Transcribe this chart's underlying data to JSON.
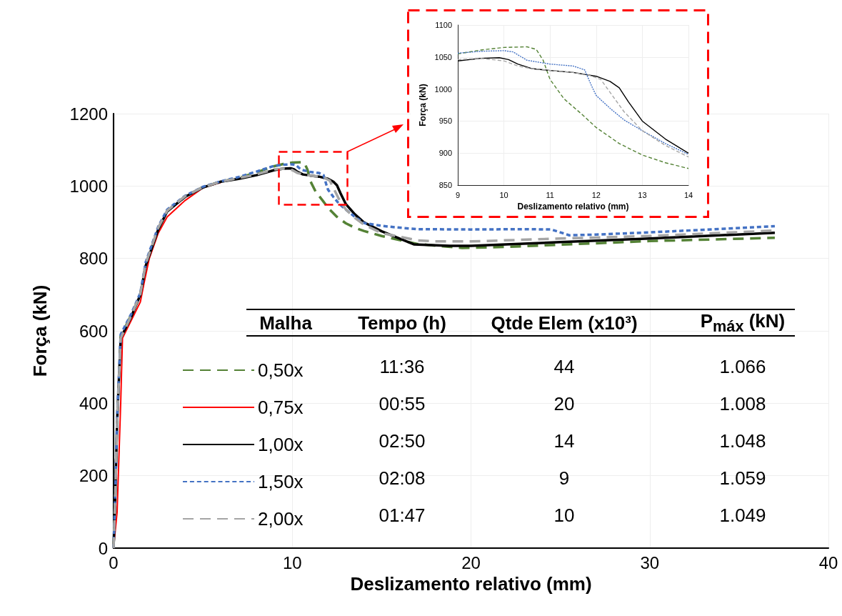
{
  "chart_data": [
    {
      "type": "line",
      "xlabel": "Deslizamento relativo (mm)",
      "ylabel": "Força (kN)",
      "xlim": [
        0,
        40
      ],
      "xticks": [
        0,
        10,
        20,
        30,
        40
      ],
      "ylim": [
        0,
        1200
      ],
      "yticks": [
        0,
        200,
        400,
        600,
        800,
        1000,
        1200
      ],
      "grid": true,
      "legend": "bottom left",
      "marker": "none",
      "annotations": [
        "Malha",
        "Tempo (h)",
        "Qtde Elem (x10³)",
        "P$_{máx}$ (kN)",
        "11:36",
        "44",
        "1.066",
        "00:55",
        "20",
        "1.008",
        "02:50",
        "14",
        "1.048",
        "02:08",
        "9",
        "1.059",
        "01:47",
        "10",
        "1.049"
      ],
      "series": [
        {
          "name": "0,50x",
          "color": "#548235",
          "line_style": "dashed",
          "x": [
            0,
            0.1,
            0.2,
            0.4,
            1,
            1.5,
            1.8,
            2.5,
            3,
            4,
            5,
            6,
            7,
            8,
            9,
            9.5,
            10,
            10.5,
            10.7,
            10.85,
            11,
            11.3,
            11.7,
            12,
            12.5,
            13,
            13.5,
            14,
            15,
            17,
            19.5,
            22,
            25,
            30,
            37
          ],
          "values": [
            0,
            150,
            350,
            585,
            645,
            700,
            783,
            882,
            931,
            971,
            997,
            1012,
            1022,
            1038,
            1055,
            1061,
            1065,
            1066,
            1062,
            1045,
            1015,
            985,
            960,
            940,
            915,
            897,
            885,
            876,
            862,
            840,
            829,
            832,
            838,
            848,
            857
          ]
        },
        {
          "name": "0,75x",
          "color": "#ff0000",
          "line_style": "solid",
          "x": [
            0,
            0.2,
            0.4,
            0.5,
            1,
            1.5,
            1.7,
            2,
            2.5,
            3,
            4,
            5,
            6
          ],
          "values": [
            0,
            100,
            400,
            580,
            630,
            680,
            730,
            800,
            870,
            915,
            960,
            995,
            1010
          ]
        },
        {
          "name": "1,00x",
          "color": "#000000",
          "line_style": "solid",
          "x": [
            0,
            0.1,
            0.2,
            0.4,
            1,
            1.5,
            1.8,
            2.5,
            3,
            4,
            5,
            6,
            7,
            8,
            9,
            9.5,
            9.9,
            10.1,
            10.3,
            10.6,
            11,
            11.5,
            12,
            12.3,
            12.5,
            12.7,
            13,
            13.5,
            14,
            15,
            16.8,
            18.8,
            20,
            25,
            30,
            37
          ],
          "values": [
            0,
            150,
            350,
            580,
            640,
            700,
            780,
            880,
            930,
            970,
            996,
            1012,
            1020,
            1030,
            1044,
            1048,
            1049,
            1046,
            1039,
            1032,
            1029,
            1026,
            1020,
            1012,
            1002,
            980,
            950,
            922,
            900,
            875,
            839,
            835,
            835,
            845,
            855,
            871
          ]
        },
        {
          "name": "1,50x",
          "color": "#4472c4",
          "line_style": "dotted",
          "x": [
            0,
            0.1,
            0.2,
            0.4,
            1,
            1.5,
            1.8,
            2.5,
            3,
            4,
            5,
            6,
            7,
            8,
            9,
            9.5,
            10,
            10.2,
            10.5,
            11,
            11.5,
            11.75,
            11.9,
            12,
            12.3,
            12.6,
            13,
            13.5,
            14,
            15,
            16,
            17,
            20,
            23,
            24.5,
            25.5,
            27,
            30,
            37
          ],
          "values": [
            0,
            160,
            360,
            590,
            648,
            705,
            790,
            888,
            935,
            973,
            998,
            1013,
            1025,
            1040,
            1056,
            1059,
            1060,
            1058,
            1045,
            1039,
            1036,
            1030,
            1005,
            990,
            970,
            952,
            935,
            915,
            898,
            890,
            885,
            881,
            880,
            881,
            880,
            864,
            866,
            872,
            889
          ]
        },
        {
          "name": "2,00x",
          "color": "#a5a5a5",
          "line_style": "dashed",
          "x": [
            0,
            0.1,
            0.2,
            0.4,
            1,
            1.5,
            1.8,
            2.5,
            3,
            4,
            5,
            6,
            7,
            8,
            9,
            9.5,
            10,
            10.3,
            10.6,
            11,
            11.5,
            11.8,
            12.1,
            12.3,
            12.6,
            13,
            13.5,
            14,
            15,
            17,
            18,
            20,
            25,
            30,
            37
          ],
          "values": [
            0,
            150,
            350,
            580,
            643,
            702,
            785,
            885,
            932,
            972,
            997,
            1012,
            1022,
            1032,
            1046,
            1048,
            1044,
            1036,
            1032,
            1029,
            1026,
            1023,
            1015,
            995,
            965,
            935,
            912,
            894,
            870,
            850,
            847,
            847,
            855,
            862,
            877
          ]
        }
      ]
    },
    {
      "type": "line",
      "xlabel": "Deslizamento relativo (mm)",
      "ylabel": "Força (kN)",
      "xlim": [
        9,
        14
      ],
      "xticks": [
        9,
        10,
        11,
        12,
        13,
        14
      ],
      "ylim": [
        850,
        1100
      ],
      "yticks": [
        850,
        900,
        950,
        1000,
        1050,
        1100
      ],
      "grid": true,
      "marker": "none",
      "series": [
        {
          "color": "#548235",
          "line_style": "dashed",
          "x": [
            9,
            9.5,
            10,
            10.5,
            10.7,
            10.85,
            11,
            11.3,
            11.7,
            12,
            12.5,
            13,
            13.5,
            14
          ],
          "values": [
            1055,
            1061,
            1065,
            1066,
            1062,
            1045,
            1015,
            985,
            960,
            940,
            915,
            897,
            885,
            876
          ]
        },
        {
          "color": "#000000",
          "line_style": "solid",
          "x": [
            9,
            9.5,
            9.9,
            10.1,
            10.3,
            10.6,
            11,
            11.5,
            12,
            12.3,
            12.5,
            12.7,
            13,
            13.5,
            14
          ],
          "values": [
            1044,
            1048,
            1049,
            1046,
            1039,
            1032,
            1029,
            1026,
            1020,
            1012,
            1002,
            980,
            950,
            922,
            900
          ]
        },
        {
          "color": "#4472c4",
          "line_style": "dotted",
          "x": [
            9,
            9.5,
            10,
            10.2,
            10.5,
            11,
            11.5,
            11.75,
            11.9,
            12,
            12.3,
            12.6,
            13,
            13.5,
            14
          ],
          "values": [
            1056,
            1059,
            1060,
            1058,
            1045,
            1039,
            1036,
            1030,
            1005,
            990,
            970,
            952,
            935,
            915,
            898
          ]
        },
        {
          "color": "#a5a5a5",
          "line_style": "dashed",
          "x": [
            9,
            9.5,
            10,
            10.3,
            10.6,
            11,
            11.5,
            11.8,
            12.1,
            12.3,
            12.6,
            13,
            13.5,
            14
          ],
          "values": [
            1046,
            1048,
            1044,
            1036,
            1032,
            1029,
            1026,
            1023,
            1015,
            995,
            965,
            935,
            912,
            894
          ]
        }
      ]
    }
  ]
}
